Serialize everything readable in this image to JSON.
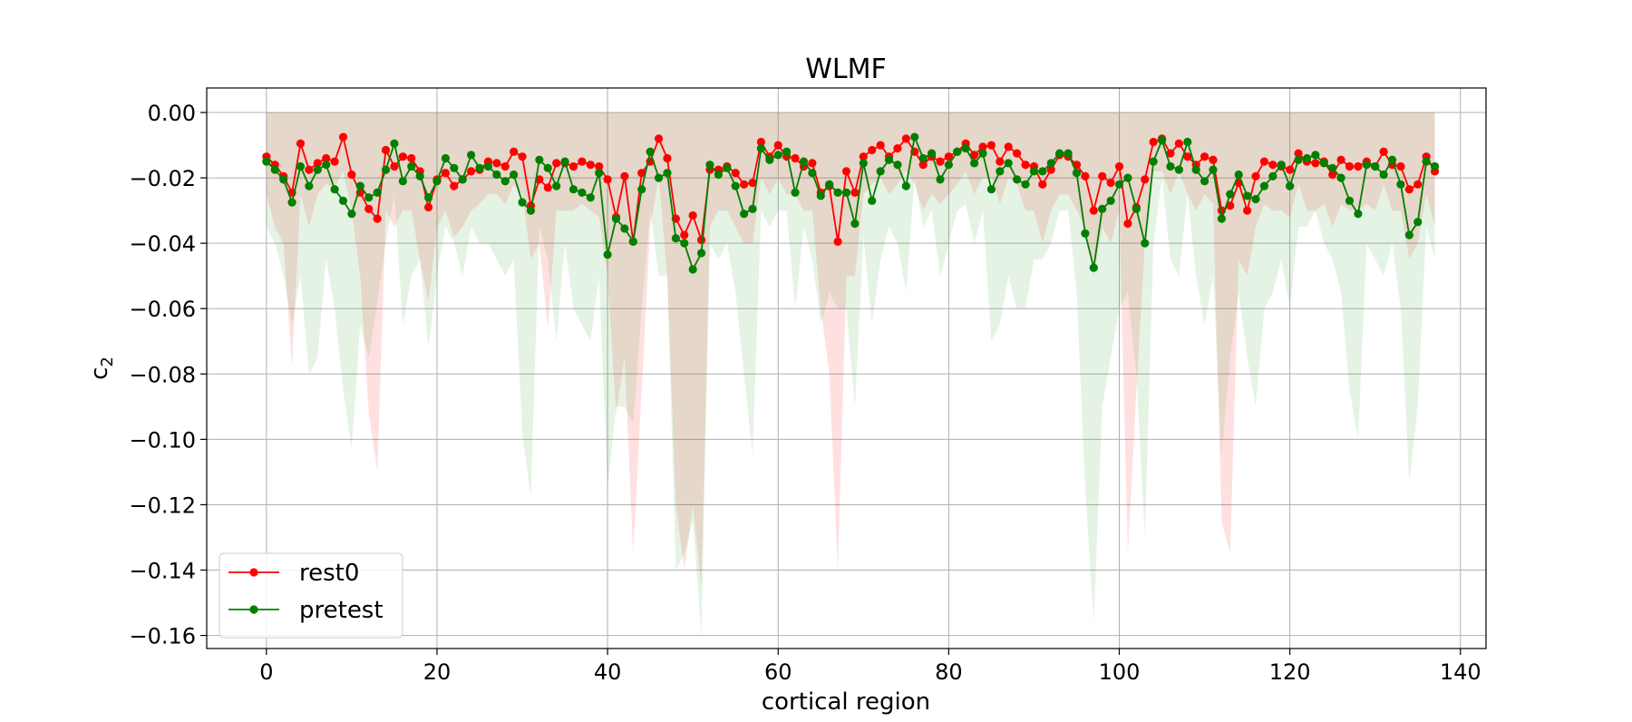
{
  "chart_data": {
    "type": "line",
    "title": "WLMF",
    "xlabel": "cortical region",
    "ylabel": "c",
    "ylabel_sub": "2",
    "xlim": [
      -7,
      143
    ],
    "ylim": [
      -0.164,
      0.0075
    ],
    "x_ticks": [
      0,
      20,
      40,
      60,
      80,
      100,
      120,
      140
    ],
    "x_tick_labels": [
      "0",
      "20",
      "40",
      "60",
      "80",
      "100",
      "120",
      "140"
    ],
    "y_ticks": [
      0.0,
      -0.02,
      -0.04,
      -0.06,
      -0.08,
      -0.1,
      -0.12,
      -0.14,
      -0.16
    ],
    "y_tick_labels": [
      "0.00",
      "−0.02",
      "−0.04",
      "−0.06",
      "−0.08",
      "−0.10",
      "−0.12",
      "−0.14",
      "−0.16"
    ],
    "grid": true,
    "legend_position": "lower-left",
    "series": [
      {
        "name": "rest0",
        "color": "#ff0000",
        "band_color": "#ff0000",
        "values": [
          -0.0135,
          -0.016,
          -0.0195,
          -0.0245,
          -0.0095,
          -0.0175,
          -0.0155,
          -0.014,
          -0.015,
          -0.0075,
          -0.019,
          -0.0245,
          -0.0295,
          -0.0325,
          -0.0115,
          -0.0165,
          -0.0135,
          -0.014,
          -0.018,
          -0.029,
          -0.0205,
          -0.0185,
          -0.0225,
          -0.0205,
          -0.018,
          -0.0175,
          -0.015,
          -0.0155,
          -0.0165,
          -0.012,
          -0.0135,
          -0.0285,
          -0.0205,
          -0.023,
          -0.0155,
          -0.0155,
          -0.0165,
          -0.015,
          -0.016,
          -0.0165,
          -0.0205,
          -0.032,
          -0.0195,
          -0.0395,
          -0.0185,
          -0.015,
          -0.008,
          -0.014,
          -0.0325,
          -0.0375,
          -0.0315,
          -0.039,
          -0.0175,
          -0.0175,
          -0.0165,
          -0.0185,
          -0.022,
          -0.0215,
          -0.009,
          -0.0135,
          -0.01,
          -0.0135,
          -0.014,
          -0.0165,
          -0.0155,
          -0.0245,
          -0.0225,
          -0.0395,
          -0.018,
          -0.0245,
          -0.0135,
          -0.0115,
          -0.01,
          -0.0135,
          -0.011,
          -0.008,
          -0.012,
          -0.016,
          -0.0135,
          -0.015,
          -0.0135,
          -0.012,
          -0.0095,
          -0.013,
          -0.0105,
          -0.01,
          -0.015,
          -0.0105,
          -0.0125,
          -0.016,
          -0.0165,
          -0.022,
          -0.0175,
          -0.013,
          -0.0135,
          -0.016,
          -0.0195,
          -0.03,
          -0.0195,
          -0.0215,
          -0.0165,
          -0.034,
          -0.029,
          -0.0205,
          -0.009,
          -0.008,
          -0.0125,
          -0.0095,
          -0.0135,
          -0.016,
          -0.0135,
          -0.0145,
          -0.03,
          -0.0285,
          -0.0215,
          -0.03,
          -0.0195,
          -0.015,
          -0.016,
          -0.0165,
          -0.0175,
          -0.0125,
          -0.015,
          -0.0155,
          -0.015,
          -0.019,
          -0.0145,
          -0.0165,
          -0.0165,
          -0.015,
          -0.0165,
          -0.012,
          -0.016,
          -0.0165,
          -0.0235,
          -0.022,
          -0.0135,
          -0.018
        ],
        "band_lower": [
          -0.025,
          -0.035,
          -0.04,
          -0.078,
          -0.025,
          -0.035,
          -0.025,
          -0.022,
          -0.023,
          -0.018,
          -0.03,
          -0.05,
          -0.092,
          -0.11,
          -0.03,
          -0.035,
          -0.03,
          -0.03,
          -0.045,
          -0.058,
          -0.035,
          -0.03,
          -0.038,
          -0.035,
          -0.03,
          -0.028,
          -0.025,
          -0.025,
          -0.028,
          -0.022,
          -0.025,
          -0.045,
          -0.04,
          -0.066,
          -0.03,
          -0.03,
          -0.03,
          -0.028,
          -0.03,
          -0.032,
          -0.05,
          -0.092,
          -0.075,
          -0.135,
          -0.085,
          -0.035,
          -0.02,
          -0.05,
          -0.12,
          -0.14,
          -0.12,
          -0.145,
          -0.035,
          -0.03,
          -0.03,
          -0.035,
          -0.04,
          -0.04,
          -0.02,
          -0.025,
          -0.02,
          -0.025,
          -0.025,
          -0.03,
          -0.03,
          -0.06,
          -0.08,
          -0.14,
          -0.05,
          -0.05,
          -0.025,
          -0.022,
          -0.02,
          -0.025,
          -0.022,
          -0.018,
          -0.022,
          -0.03,
          -0.025,
          -0.028,
          -0.025,
          -0.022,
          -0.018,
          -0.025,
          -0.02,
          -0.02,
          -0.028,
          -0.02,
          -0.022,
          -0.03,
          -0.03,
          -0.04,
          -0.03,
          -0.025,
          -0.025,
          -0.03,
          -0.035,
          -0.05,
          -0.035,
          -0.04,
          -0.03,
          -0.135,
          -0.085,
          -0.04,
          -0.018,
          -0.018,
          -0.025,
          -0.018,
          -0.025,
          -0.03,
          -0.025,
          -0.028,
          -0.125,
          -0.135,
          -0.045,
          -0.05,
          -0.035,
          -0.028,
          -0.03,
          -0.03,
          -0.032,
          -0.022,
          -0.03,
          -0.03,
          -0.028,
          -0.035,
          -0.028,
          -0.03,
          -0.03,
          -0.028,
          -0.03,
          -0.022,
          -0.03,
          -0.03,
          -0.045,
          -0.04,
          -0.025,
          -0.035
        ],
        "band_upper": [
          0.0,
          0.0,
          0.0,
          0.0,
          0.0,
          0.0,
          0.0,
          0.0,
          0.0,
          0.0,
          0.0,
          0.0,
          0.0,
          0.0,
          0.0,
          0.0,
          0.0,
          0.0,
          0.0,
          0.0,
          0.0,
          0.0,
          0.0,
          0.0,
          0.0,
          0.0,
          0.0,
          0.0,
          0.0,
          0.0,
          0.0,
          0.0,
          0.0,
          0.0,
          0.0,
          0.0,
          0.0,
          0.0,
          0.0,
          0.0,
          0.0,
          0.0,
          0.0,
          0.0,
          0.0,
          0.0,
          0.0,
          0.0,
          0.0,
          0.0,
          0.0,
          0.0,
          0.0,
          0.0,
          0.0,
          0.0,
          0.0,
          0.0,
          0.0,
          0.0,
          0.0,
          0.0,
          0.0,
          0.0,
          0.0,
          0.0,
          0.0,
          0.0,
          0.0,
          0.0,
          0.0,
          0.0,
          0.0,
          0.0,
          0.0,
          0.0,
          0.0,
          0.0,
          0.0,
          0.0,
          0.0,
          0.0,
          0.0,
          0.0,
          0.0,
          0.0,
          0.0,
          0.0,
          0.0,
          0.0,
          0.0,
          0.0,
          0.0,
          0.0,
          0.0,
          0.0,
          0.0,
          0.0,
          0.0,
          0.0,
          0.0,
          0.0,
          0.0,
          0.0,
          0.0,
          0.0,
          0.0,
          0.0,
          0.0,
          0.0,
          0.0,
          0.0,
          0.0,
          0.0,
          0.0,
          0.0,
          0.0,
          0.0,
          0.0,
          0.0,
          0.0,
          0.0,
          0.0,
          0.0,
          0.0,
          0.0,
          0.0,
          0.0,
          0.0,
          0.0,
          0.0,
          0.0,
          0.0,
          0.0,
          0.0,
          0.0,
          0.0,
          0.0
        ]
      },
      {
        "name": "pretest",
        "color": "#007f00",
        "band_color": "#2ca02c",
        "values": [
          -0.015,
          -0.0175,
          -0.0205,
          -0.0275,
          -0.0165,
          -0.0225,
          -0.0175,
          -0.016,
          -0.0235,
          -0.027,
          -0.031,
          -0.0225,
          -0.026,
          -0.0245,
          -0.0175,
          -0.0095,
          -0.021,
          -0.0165,
          -0.0195,
          -0.026,
          -0.021,
          -0.014,
          -0.017,
          -0.0205,
          -0.013,
          -0.017,
          -0.0165,
          -0.019,
          -0.021,
          -0.019,
          -0.0275,
          -0.03,
          -0.0145,
          -0.017,
          -0.0225,
          -0.015,
          -0.0235,
          -0.0245,
          -0.026,
          -0.0185,
          -0.0435,
          -0.0325,
          -0.0355,
          -0.0395,
          -0.0235,
          -0.012,
          -0.02,
          -0.0185,
          -0.0385,
          -0.04,
          -0.048,
          -0.043,
          -0.016,
          -0.019,
          -0.017,
          -0.0225,
          -0.031,
          -0.0295,
          -0.011,
          -0.0145,
          -0.013,
          -0.012,
          -0.0245,
          -0.015,
          -0.0185,
          -0.0255,
          -0.022,
          -0.0245,
          -0.0245,
          -0.034,
          -0.0155,
          -0.027,
          -0.018,
          -0.0145,
          -0.016,
          -0.0225,
          -0.0075,
          -0.014,
          -0.0125,
          -0.0205,
          -0.016,
          -0.012,
          -0.011,
          -0.0155,
          -0.0125,
          -0.0235,
          -0.018,
          -0.0155,
          -0.0205,
          -0.022,
          -0.018,
          -0.018,
          -0.0155,
          -0.0125,
          -0.0125,
          -0.0185,
          -0.037,
          -0.0475,
          -0.0295,
          -0.027,
          -0.022,
          -0.02,
          -0.0295,
          -0.04,
          -0.015,
          -0.0085,
          -0.0165,
          -0.0175,
          -0.009,
          -0.0175,
          -0.021,
          -0.0175,
          -0.0325,
          -0.025,
          -0.019,
          -0.0255,
          -0.0265,
          -0.0225,
          -0.0195,
          -0.016,
          -0.0225,
          -0.0145,
          -0.014,
          -0.013,
          -0.0155,
          -0.017,
          -0.02,
          -0.027,
          -0.031,
          -0.016,
          -0.0165,
          -0.019,
          -0.0145,
          -0.022,
          -0.0375,
          -0.0335,
          -0.015,
          -0.0165
        ],
        "band_lower": [
          -0.035,
          -0.04,
          -0.05,
          -0.065,
          -0.05,
          -0.08,
          -0.075,
          -0.045,
          -0.06,
          -0.085,
          -0.103,
          -0.065,
          -0.075,
          -0.058,
          -0.04,
          -0.025,
          -0.065,
          -0.05,
          -0.045,
          -0.072,
          -0.05,
          -0.035,
          -0.04,
          -0.05,
          -0.035,
          -0.04,
          -0.04,
          -0.045,
          -0.05,
          -0.045,
          -0.098,
          -0.118,
          -0.035,
          -0.045,
          -0.07,
          -0.04,
          -0.06,
          -0.065,
          -0.07,
          -0.05,
          -0.115,
          -0.09,
          -0.09,
          -0.095,
          -0.06,
          -0.03,
          -0.05,
          -0.05,
          -0.14,
          -0.135,
          -0.125,
          -0.16,
          -0.04,
          -0.045,
          -0.04,
          -0.055,
          -0.08,
          -0.105,
          -0.03,
          -0.035,
          -0.03,
          -0.03,
          -0.06,
          -0.035,
          -0.045,
          -0.065,
          -0.055,
          -0.06,
          -0.06,
          -0.09,
          -0.038,
          -0.065,
          -0.045,
          -0.035,
          -0.04,
          -0.055,
          -0.02,
          -0.035,
          -0.03,
          -0.05,
          -0.04,
          -0.03,
          -0.028,
          -0.04,
          -0.03,
          -0.07,
          -0.065,
          -0.05,
          -0.06,
          -0.06,
          -0.045,
          -0.045,
          -0.04,
          -0.03,
          -0.03,
          -0.055,
          -0.115,
          -0.156,
          -0.09,
          -0.075,
          -0.06,
          -0.055,
          -0.08,
          -0.13,
          -0.04,
          -0.02,
          -0.045,
          -0.05,
          -0.025,
          -0.05,
          -0.065,
          -0.05,
          -0.105,
          -0.075,
          -0.055,
          -0.075,
          -0.09,
          -0.06,
          -0.055,
          -0.045,
          -0.06,
          -0.035,
          -0.035,
          -0.03,
          -0.04,
          -0.045,
          -0.055,
          -0.085,
          -0.1,
          -0.04,
          -0.045,
          -0.05,
          -0.04,
          -0.06,
          -0.113,
          -0.09,
          -0.035,
          -0.045
        ],
        "band_upper": [
          0.0,
          0.0,
          0.0,
          0.0,
          0.0,
          0.0,
          0.0,
          0.0,
          0.0,
          0.0,
          0.0,
          0.0,
          0.0,
          0.0,
          0.0,
          0.0,
          0.0,
          0.0,
          0.0,
          0.0,
          0.0,
          0.0,
          0.0,
          0.0,
          0.0,
          0.0,
          0.0,
          0.0,
          0.0,
          0.0,
          0.0,
          0.0,
          0.0,
          0.0,
          0.0,
          0.0,
          0.0,
          0.0,
          0.0,
          0.0,
          0.0,
          0.0,
          0.0,
          0.0,
          0.0,
          0.0,
          0.0,
          0.0,
          0.0,
          0.0,
          0.0,
          0.0,
          0.0,
          0.0,
          0.0,
          0.0,
          0.0,
          0.0,
          0.0,
          0.0,
          0.0,
          0.0,
          0.0,
          0.0,
          0.0,
          0.0,
          0.0,
          0.0,
          0.0,
          0.0,
          0.0,
          0.0,
          0.0,
          0.0,
          0.0,
          0.0,
          0.0,
          0.0,
          0.0,
          0.0,
          0.0,
          0.0,
          0.0,
          0.0,
          0.0,
          0.0,
          0.0,
          0.0,
          0.0,
          0.0,
          0.0,
          0.0,
          0.0,
          0.0,
          0.0,
          0.0,
          0.0,
          0.0,
          0.0,
          0.0,
          0.0,
          0.0,
          0.0,
          0.0,
          0.0,
          0.0,
          0.0,
          0.0,
          0.0,
          0.0,
          0.0,
          0.0,
          0.0,
          0.0,
          0.0,
          0.0,
          0.0,
          0.0,
          0.0,
          0.0,
          0.0,
          0.0,
          0.0,
          0.0,
          0.0,
          0.0,
          0.0,
          0.0,
          0.0,
          0.0,
          0.0,
          0.0,
          0.0,
          0.0,
          0.0,
          0.0,
          0.0,
          0.0
        ]
      }
    ]
  }
}
